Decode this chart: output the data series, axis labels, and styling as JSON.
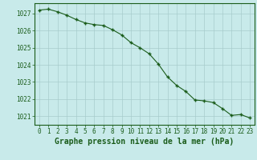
{
  "x": [
    0,
    1,
    2,
    3,
    4,
    5,
    6,
    7,
    8,
    9,
    10,
    11,
    12,
    13,
    14,
    15,
    16,
    17,
    18,
    19,
    20,
    21,
    22,
    23
  ],
  "y": [
    1027.2,
    1027.25,
    1027.1,
    1026.9,
    1026.65,
    1026.45,
    1026.35,
    1026.3,
    1026.05,
    1025.75,
    1025.3,
    1025.0,
    1024.65,
    1024.05,
    1023.3,
    1022.8,
    1022.45,
    1021.95,
    1021.9,
    1021.8,
    1021.45,
    1021.05,
    1021.1,
    1020.9
  ],
  "line_color": "#1a5c1a",
  "marker_color": "#1a5c1a",
  "bg_color": "#c8eaea",
  "grid_color": "#a8cccc",
  "text_color": "#1a5c1a",
  "xlabel": "Graphe pression niveau de la mer (hPa)",
  "ylim_min": 1020.5,
  "ylim_max": 1027.6,
  "yticks": [
    1021,
    1022,
    1023,
    1024,
    1025,
    1026,
    1027
  ],
  "xticks": [
    0,
    1,
    2,
    3,
    4,
    5,
    6,
    7,
    8,
    9,
    10,
    11,
    12,
    13,
    14,
    15,
    16,
    17,
    18,
    19,
    20,
    21,
    22,
    23
  ],
  "tick_fontsize": 5.5,
  "xlabel_fontsize": 7.0
}
